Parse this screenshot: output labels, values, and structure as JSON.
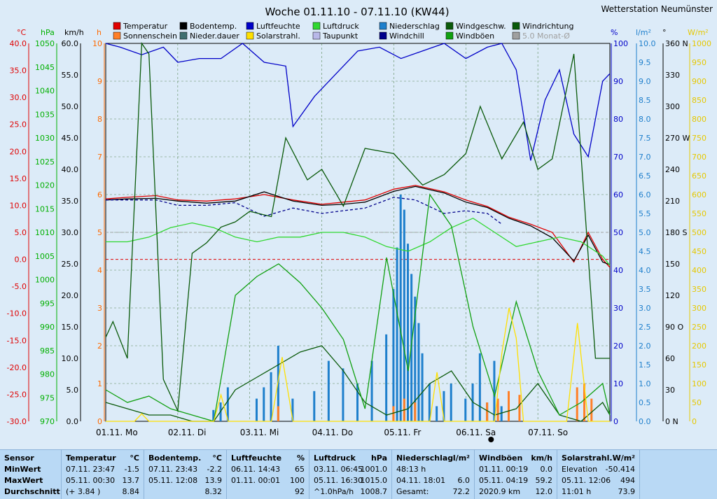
{
  "station_title": "Wetterstation Neumünster",
  "chart_data": {
    "type": "line",
    "title": "Woche 01.11.10 - 07.11.10 (KW44)",
    "x_ticks": [
      "01.11. Mo",
      "02.11. Di",
      "03.11. Mi",
      "04.11. Do",
      "05.11. Fr",
      "06.11. Sa",
      "07.11. So"
    ],
    "x_range_days": [
      0,
      7
    ],
    "left_axes": [
      {
        "unit": "°C",
        "color": "#e00000",
        "ticks": [
          "40.0",
          "35.0",
          "30.0",
          "25.0",
          "20.0",
          "15.0",
          "10.0",
          "5.0",
          "0.0",
          "-5.0",
          "-10.0",
          "-15.0",
          "-20.0",
          "-25.0",
          "-30.0"
        ]
      },
      {
        "unit": "hPa",
        "color": "#00b000",
        "ticks": [
          "1050",
          "1045",
          "1040",
          "1035",
          "1030",
          "1025",
          "1020",
          "1015",
          "1010",
          "1005",
          "1000",
          "995",
          "990",
          "985",
          "980",
          "975",
          "970"
        ]
      },
      {
        "unit": "km/h",
        "color": "#000000",
        "ticks": [
          "60.0",
          "55.0",
          "50.0",
          "45.0",
          "40.0",
          "35.0",
          "30.0",
          "25.0",
          "20.0",
          "15.0",
          "10.0",
          "5.0",
          "0.0"
        ]
      },
      {
        "unit": "h",
        "color": "#ff6a00",
        "ticks": [
          "10",
          "9",
          "8",
          "7",
          "6",
          "5",
          "4",
          "3",
          "2",
          "1",
          "0"
        ]
      }
    ],
    "right_axes": [
      {
        "unit": "%",
        "color": "#0000c8",
        "ticks": [
          "100",
          "90",
          "80",
          "70",
          "60",
          "50",
          "40",
          "30",
          "20",
          "10",
          "0"
        ]
      },
      {
        "unit": "l/m²",
        "color": "#1e7fcc",
        "ticks": [
          "10.0",
          "9.5",
          "9.0",
          "8.5",
          "8.0",
          "7.5",
          "7.0",
          "6.5",
          "6.0",
          "5.5",
          "5.0",
          "4.5",
          "4.0",
          "3.5",
          "3.0",
          "2.5",
          "2.0",
          "1.5",
          "1.0",
          "0.5",
          "0.0"
        ]
      },
      {
        "unit": "°",
        "color": "#000000",
        "ticks": [
          "360 N",
          "330",
          "300",
          "270 W",
          "240",
          "210",
          "180 S",
          "150",
          "120",
          "90 O",
          "60",
          "30",
          "0 N"
        ]
      },
      {
        "unit": "W/m²",
        "color": "#e6c800",
        "ticks": [
          "1000",
          "950",
          "900",
          "850",
          "800",
          "750",
          "700",
          "650",
          "600",
          "550",
          "500",
          "450",
          "400",
          "350",
          "300",
          "250",
          "200",
          "150",
          "100",
          "50",
          "0"
        ]
      }
    ],
    "legend": [
      {
        "label": "Temperatur",
        "color": "#e00000"
      },
      {
        "label": "Sonnenschein",
        "color": "#ff7f27"
      },
      {
        "label": "Bodentemp.",
        "color": "#000000"
      },
      {
        "label": "Nieder.dauer",
        "color": "#3f6f6f"
      },
      {
        "label": "Luftfeuchte",
        "color": "#0000c8"
      },
      {
        "label": "Solarstrahl.",
        "color": "#ffe000"
      },
      {
        "label": "Luftdruck",
        "color": "#30d830"
      },
      {
        "label": "Taupunkt",
        "color": "#b8b8e8"
      },
      {
        "label": "Niederschlag",
        "color": "#1e7fcc"
      },
      {
        "label": "Windchill",
        "color": "#00008b"
      },
      {
        "label": "Windgeschw.",
        "color": "#0a5a0a"
      },
      {
        "label": "Windböen",
        "color": "#10a010"
      },
      {
        "label": "Windrichtung",
        "color": "#0a5a0a"
      },
      {
        "label": "5.0 Monat-Ø",
        "color": "#a0a0a0"
      }
    ],
    "series": [
      {
        "name": "Temperatur",
        "axis": "°C",
        "color": "#e00000",
        "x": [
          0,
          0.3,
          0.7,
          1.0,
          1.4,
          1.8,
          2.2,
          2.6,
          3.0,
          3.3,
          3.6,
          4.0,
          4.3,
          4.7,
          5.0,
          5.3,
          5.6,
          5.9,
          6.2,
          6.5,
          6.7,
          6.9,
          7.0
        ],
        "values": [
          11.2,
          11.5,
          11.8,
          11.0,
          10.8,
          11.2,
          12.0,
          11.0,
          10.2,
          10.6,
          11.0,
          13.0,
          13.7,
          12.5,
          11.0,
          9.8,
          7.8,
          6.5,
          5.0,
          -0.5,
          5.0,
          0.0,
          -1.5
        ]
      },
      {
        "name": "Bodentemp.",
        "axis": "°C",
        "color": "#000000",
        "x": [
          0,
          0.3,
          0.7,
          1.0,
          1.4,
          1.8,
          2.2,
          2.6,
          3.0,
          3.3,
          3.6,
          4.0,
          4.3,
          4.7,
          5.0,
          5.3,
          5.6,
          5.9,
          6.2,
          6.5,
          6.7,
          6.9,
          7.0
        ],
        "values": [
          11.0,
          11.2,
          11.3,
          10.8,
          10.4,
          10.8,
          12.5,
          10.8,
          10.0,
          10.2,
          10.6,
          12.6,
          13.5,
          12.3,
          10.6,
          9.6,
          7.6,
          6.2,
          4.0,
          -0.3,
          4.5,
          -0.5,
          -1.0
        ]
      },
      {
        "name": "Windchill",
        "axis": "°C",
        "color": "#00008b",
        "dash": "4,3",
        "x": [
          0,
          0.3,
          0.7,
          1.0,
          1.4,
          1.8,
          2.2,
          2.6,
          3.0,
          3.3,
          3.6,
          4.0,
          4.3,
          4.7,
          5.0,
          5.3,
          5.5
        ],
        "values": [
          11.0,
          11.0,
          11.0,
          10.0,
          10.0,
          10.5,
          8.0,
          9.5,
          8.5,
          9.0,
          9.5,
          11.5,
          11.0,
          8.5,
          9.0,
          8.5,
          6.5
        ]
      },
      {
        "name": "Luftfeuchte",
        "axis": "%",
        "color": "#0000c8",
        "x": [
          0,
          0.2,
          0.5,
          0.8,
          1.0,
          1.3,
          1.6,
          1.9,
          2.2,
          2.5,
          2.6,
          2.9,
          3.2,
          3.5,
          3.8,
          4.1,
          4.4,
          4.7,
          5.0,
          5.3,
          5.5,
          5.7,
          5.9,
          6.1,
          6.3,
          6.5,
          6.7,
          6.9,
          7.0
        ],
        "values": [
          100,
          99,
          97,
          99,
          95,
          96,
          96,
          100,
          95,
          94,
          78,
          86,
          92,
          98,
          99,
          96,
          98,
          100,
          96,
          99,
          100,
          93,
          69,
          85,
          93,
          76,
          70,
          90,
          92
        ]
      },
      {
        "name": "Luftdruck",
        "axis": "hPa",
        "color": "#30d830",
        "x": [
          0,
          0.3,
          0.6,
          0.9,
          1.2,
          1.5,
          1.8,
          2.1,
          2.4,
          2.7,
          3.0,
          3.3,
          3.6,
          3.9,
          4.2,
          4.5,
          4.8,
          5.1,
          5.4,
          5.7,
          6.0,
          6.3,
          6.6,
          6.9,
          7.0
        ],
        "values": [
          1008,
          1008,
          1009,
          1011,
          1012,
          1011,
          1009,
          1008,
          1009,
          1009,
          1010,
          1010,
          1009,
          1007,
          1006,
          1008,
          1011,
          1013,
          1010,
          1007,
          1008,
          1009,
          1008,
          1005,
          1003
        ]
      },
      {
        "name": "Windgeschw.",
        "axis": "km/h",
        "color": "#0a5a0a",
        "x": [
          0,
          0.3,
          0.6,
          0.9,
          1.2,
          1.5,
          1.8,
          2.1,
          2.4,
          2.7,
          3.0,
          3.3,
          3.6,
          3.9,
          4.2,
          4.5,
          4.8,
          5.1,
          5.4,
          5.7,
          6.0,
          6.3,
          6.6,
          6.9,
          7.0
        ],
        "values": [
          3,
          2,
          1,
          1,
          0,
          0,
          5,
          7,
          9,
          11,
          12,
          8,
          3,
          1,
          2,
          6,
          8,
          3,
          1,
          2,
          6,
          1,
          0,
          3,
          1
        ]
      },
      {
        "name": "Windböen",
        "axis": "km/h",
        "color": "#10a010",
        "x": [
          0,
          0.3,
          0.6,
          0.9,
          1.2,
          1.5,
          1.8,
          2.1,
          2.4,
          2.7,
          3.0,
          3.3,
          3.6,
          3.9,
          4.2,
          4.5,
          4.8,
          5.1,
          5.4,
          5.7,
          6.0,
          6.3,
          6.6,
          6.9,
          7.0
        ],
        "values": [
          5,
          3,
          4,
          2,
          1,
          0,
          20,
          23,
          25,
          22,
          18,
          13,
          2,
          26,
          8,
          36,
          31,
          15,
          4,
          19,
          8,
          1,
          3,
          6,
          1
        ]
      },
      {
        "name": "Windrichtung",
        "axis": "°",
        "color": "#0a5a0a",
        "x": [
          0,
          0.1,
          0.3,
          0.5,
          0.6,
          0.8,
          1.0,
          1.2,
          1.4,
          1.6,
          1.8,
          2.0,
          2.3,
          2.5,
          2.8,
          3.0,
          3.3,
          3.6,
          4.0,
          4.4,
          4.7,
          5.0,
          5.2,
          5.5,
          5.8,
          6.0,
          6.2,
          6.5,
          6.8,
          7.0
        ],
        "values": [
          80,
          95,
          60,
          360,
          350,
          40,
          10,
          160,
          170,
          185,
          190,
          200,
          195,
          270,
          230,
          240,
          205,
          260,
          255,
          225,
          235,
          255,
          300,
          250,
          285,
          240,
          250,
          350,
          60,
          60
        ]
      },
      {
        "name": "Solarstrahl.",
        "axis": "W/m²",
        "color": "#ffe000",
        "x": [
          0,
          0.4,
          0.5,
          0.6,
          1.5,
          1.6,
          1.7,
          2.3,
          2.45,
          2.6,
          3.0,
          4.5,
          4.6,
          4.7,
          5.4,
          5.5,
          5.6,
          5.7,
          5.8,
          6.4,
          6.55,
          6.7,
          7.0
        ],
        "values": [
          0,
          0,
          20,
          0,
          0,
          70,
          0,
          0,
          170,
          0,
          0,
          0,
          130,
          0,
          0,
          180,
          300,
          220,
          0,
          0,
          260,
          0,
          0
        ]
      },
      {
        "name": "Niederschlag",
        "axis": "l/m²",
        "color": "#1e7fcc",
        "kind": "bar",
        "x": [
          1.5,
          1.6,
          1.7,
          2.1,
          2.2,
          2.3,
          2.4,
          2.6,
          2.9,
          3.1,
          3.3,
          3.5,
          3.7,
          3.9,
          4.0,
          4.05,
          4.1,
          4.15,
          4.2,
          4.25,
          4.3,
          4.35,
          4.4,
          4.5,
          4.6,
          4.7,
          4.8,
          5.0,
          5.1,
          5.2,
          5.3,
          5.4,
          5.5
        ],
        "values": [
          0.3,
          0.5,
          0.9,
          0.6,
          0.9,
          1.3,
          2.0,
          0.6,
          0.8,
          1.6,
          1.4,
          1.0,
          1.6,
          2.3,
          3.5,
          4.6,
          6.0,
          5.6,
          4.7,
          3.9,
          3.3,
          2.6,
          1.8,
          1.0,
          0.4,
          0.8,
          1.0,
          0.6,
          1.0,
          1.8,
          0.5,
          1.6,
          0.4
        ]
      },
      {
        "name": "Sonnenschein",
        "axis": "h",
        "color": "#ff7f27",
        "kind": "bar",
        "x": [
          2.4,
          4.0,
          4.15,
          4.3,
          5.3,
          5.45,
          5.6,
          5.75,
          6.55,
          6.65,
          6.75
        ],
        "values": [
          0.4,
          0.4,
          0.6,
          0.5,
          0.5,
          0.6,
          0.8,
          0.7,
          0.9,
          1.0,
          0.6
        ]
      }
    ],
    "reference_lines": [
      {
        "axis": "°C",
        "value": 0,
        "style": "dashed",
        "color": "#e00000"
      },
      {
        "axis": "°C",
        "value": 5,
        "style": "dashed",
        "color": "#a0a0a0"
      }
    ]
  },
  "stats": {
    "columns": [
      {
        "title": "Sensor",
        "unit": "",
        "rows": [
          "MinWert",
          "MaxWert",
          "Durchschnitt"
        ]
      },
      {
        "title": "Temperatur",
        "unit": "°C",
        "rows": [
          [
            "07.11.  23:47",
            "-1.5"
          ],
          [
            "05.11.  00:30",
            "13.7"
          ],
          [
            "(+ 3.84 )",
            "8.84"
          ]
        ]
      },
      {
        "title": "Bodentemp.",
        "unit": "°C",
        "rows": [
          [
            "07.11.  23:43",
            "-2.2"
          ],
          [
            "05.11.  12:08",
            "13.9"
          ],
          [
            "",
            "8.32"
          ]
        ]
      },
      {
        "title": "Luftfeuchte",
        "unit": "%",
        "rows": [
          [
            "06.11.  14:43",
            "65"
          ],
          [
            "01.11.  00:01",
            "100"
          ],
          [
            "",
            "92"
          ]
        ]
      },
      {
        "title": "Luftdruck",
        "unit": "hPa",
        "rows": [
          [
            "03.11.  06:45",
            "1001.0"
          ],
          [
            "05.11.  16:30",
            "1015.0"
          ],
          [
            "^1.0hPa/h",
            "1008.7"
          ]
        ]
      },
      {
        "title": "Niederschlag",
        "unit": "l/m²",
        "rows": [
          [
            "48:13 h",
            ""
          ],
          [
            "04.11.  18:01",
            "6.0"
          ],
          [
            "Gesamt:",
            "72.2"
          ]
        ]
      },
      {
        "title": "Windböen",
        "unit": "km/h",
        "rows": [
          [
            "01.11.  00:19",
            "0.0"
          ],
          [
            "05.11.  04:19",
            "59.2"
          ],
          [
            "2020.9 km",
            "12.0"
          ]
        ]
      },
      {
        "title": "Solarstrahl.",
        "unit": "W/m²",
        "rows": [
          [
            "Elevation",
            "-50.414"
          ],
          [
            "05.11.  12:06",
            "494"
          ],
          [
            "11:01 h",
            "73.9"
          ]
        ]
      }
    ]
  }
}
